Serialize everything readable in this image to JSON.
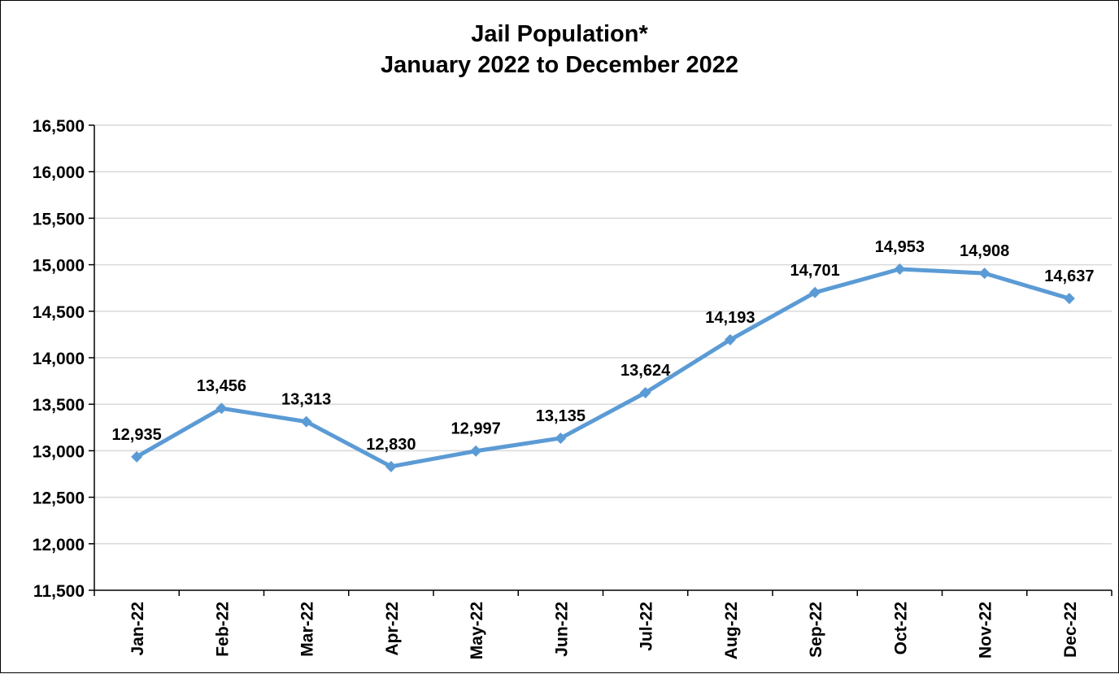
{
  "chart_data": {
    "type": "line",
    "title": "Jail Population*",
    "subtitle": "January 2022 to December 2022",
    "xlabel": "",
    "ylabel": "",
    "categories": [
      "Jan-22",
      "Feb-22",
      "Mar-22",
      "Apr-22",
      "May-22",
      "Jun-22",
      "Jul-22",
      "Aug-22",
      "Sep-22",
      "Oct-22",
      "Nov-22",
      "Dec-22"
    ],
    "values": [
      12935,
      13456,
      13313,
      12830,
      12997,
      13135,
      13624,
      14193,
      14701,
      14953,
      14908,
      14637
    ],
    "data_labels": [
      "12,935",
      "13,456",
      "13,313",
      "12,830",
      "12,997",
      "13,135",
      "13,624",
      "14,193",
      "14,701",
      "14,953",
      "14,908",
      "14,637"
    ],
    "yticks": [
      "11,500",
      "12,000",
      "12,500",
      "13,000",
      "13,500",
      "14,000",
      "14,500",
      "15,000",
      "15,500",
      "16,000",
      "16,500"
    ],
    "ylim": [
      11500,
      16500
    ],
    "grid": true,
    "legend": "none",
    "line_color": "#5B9BD5",
    "grid_color": "#D9D9D9"
  }
}
